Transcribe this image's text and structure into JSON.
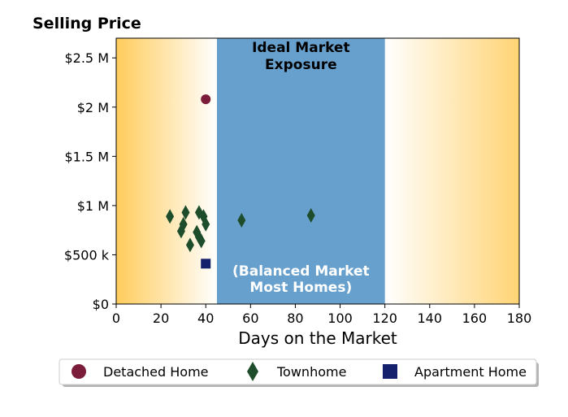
{
  "chart_data": {
    "type": "scatter",
    "title": "Selling Price",
    "xlabel": "Days on the Market",
    "ylabel": "",
    "xlim": [
      0,
      180
    ],
    "ylim": [
      0,
      2700000
    ],
    "x_ticks": [
      0,
      20,
      40,
      60,
      80,
      100,
      120,
      140,
      160,
      180
    ],
    "x_tick_labels": [
      "0",
      "20",
      "40",
      "60",
      "80",
      "100",
      "120",
      "140",
      "160",
      "180"
    ],
    "y_ticks": [
      0,
      500000,
      1000000,
      1500000,
      2000000,
      2500000
    ],
    "y_tick_labels": [
      "$0",
      "$500 k",
      "$1 M",
      "$1.5 M",
      "$2 M",
      "$2.5 M"
    ],
    "grid": false,
    "legend_placement": "bottom",
    "ideal_band": {
      "x_range": [
        45,
        120
      ],
      "color": "#68a0cd",
      "title": [
        "Ideal Market",
        "Exposure"
      ],
      "subtitle": [
        "(Balanced Market",
        "Most Homes)"
      ]
    },
    "gradient_color": "#ffcc5c",
    "series": [
      {
        "name": "Detached Home",
        "marker": "circle",
        "color": "#7b1c3a",
        "points": [
          [
            40,
            2080000
          ]
        ]
      },
      {
        "name": "Townhome",
        "marker": "diamond",
        "color": "#1e4d2b",
        "points": [
          [
            24,
            890000
          ],
          [
            29,
            740000
          ],
          [
            30,
            810000
          ],
          [
            31,
            930000
          ],
          [
            33,
            600000
          ],
          [
            36,
            730000
          ],
          [
            37,
            930000
          ],
          [
            37,
            680000
          ],
          [
            38,
            640000
          ],
          [
            39,
            890000
          ],
          [
            40,
            810000
          ],
          [
            56,
            850000
          ],
          [
            87,
            900000
          ]
        ]
      },
      {
        "name": "Apartment Home",
        "marker": "square",
        "color": "#14206b",
        "points": [
          [
            40,
            410000
          ]
        ]
      }
    ]
  }
}
